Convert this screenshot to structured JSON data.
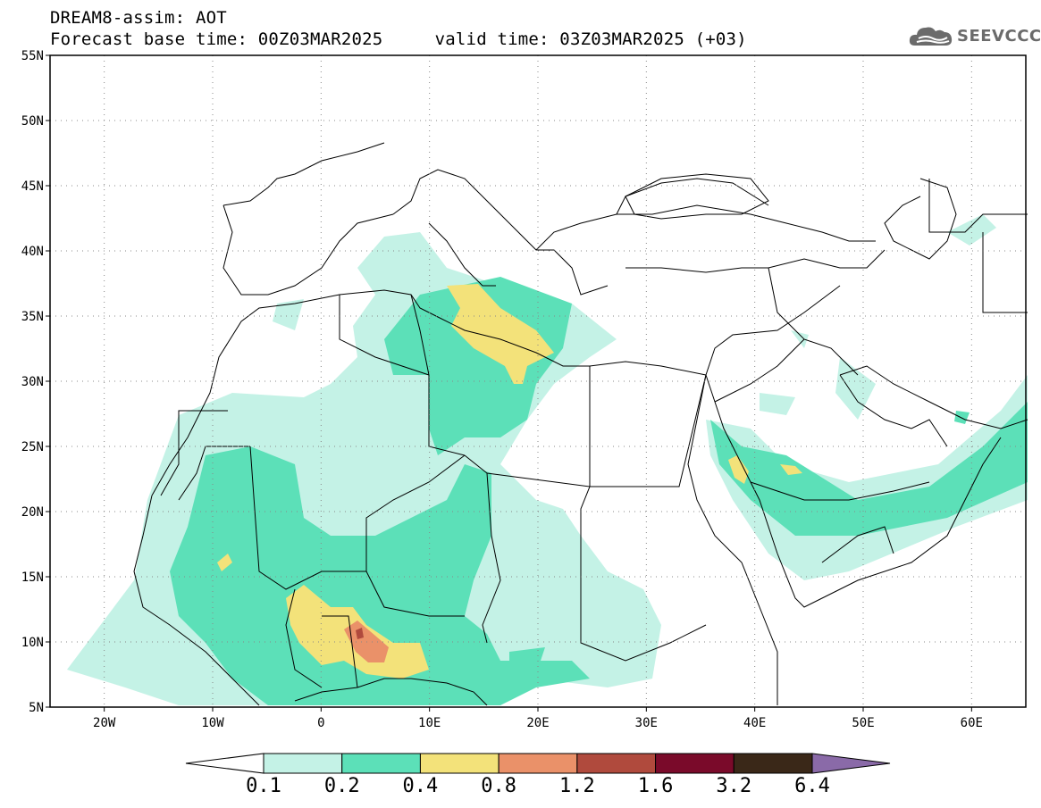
{
  "header": {
    "title_line1": "DREAM8-assim: AOT",
    "title_line2": "Forecast base time: 00Z03MAR2025     valid time: 03Z03MAR2025 (+03)"
  },
  "logo": {
    "text": "SEEVCCC",
    "icon": "cloud-logo-icon"
  },
  "map": {
    "lon_range": [
      -25,
      65
    ],
    "lat_range": [
      5,
      55
    ],
    "grid": true,
    "lat_ticks": [
      {
        "value": 55,
        "label": "55N"
      },
      {
        "value": 50,
        "label": "50N"
      },
      {
        "value": 45,
        "label": "45N"
      },
      {
        "value": 40,
        "label": "40N"
      },
      {
        "value": 35,
        "label": "35N"
      },
      {
        "value": 30,
        "label": "30N"
      },
      {
        "value": 25,
        "label": "25N"
      },
      {
        "value": 20,
        "label": "20N"
      },
      {
        "value": 15,
        "label": "15N"
      },
      {
        "value": 10,
        "label": "10N"
      },
      {
        "value": 5,
        "label": "5N"
      }
    ],
    "lon_ticks": [
      {
        "value": -20,
        "label": "20W"
      },
      {
        "value": -10,
        "label": "10W"
      },
      {
        "value": 0,
        "label": "0"
      },
      {
        "value": 10,
        "label": "10E"
      },
      {
        "value": 20,
        "label": "20E"
      },
      {
        "value": 30,
        "label": "30E"
      },
      {
        "value": 40,
        "label": "40E"
      },
      {
        "value": 50,
        "label": "50E"
      },
      {
        "value": 60,
        "label": "60E"
      }
    ]
  },
  "colorbar": {
    "levels": [
      "0.1",
      "0.2",
      "0.4",
      "0.8",
      "1.2",
      "1.6",
      "3.2",
      "6.4"
    ],
    "colors": [
      "#ffffff",
      "#c4f2e6",
      "#5ce0b8",
      "#f3e27a",
      "#ea9169",
      "#b04a3d",
      "#7a0a2a",
      "#3a2818",
      "#8a6aa8"
    ]
  }
}
